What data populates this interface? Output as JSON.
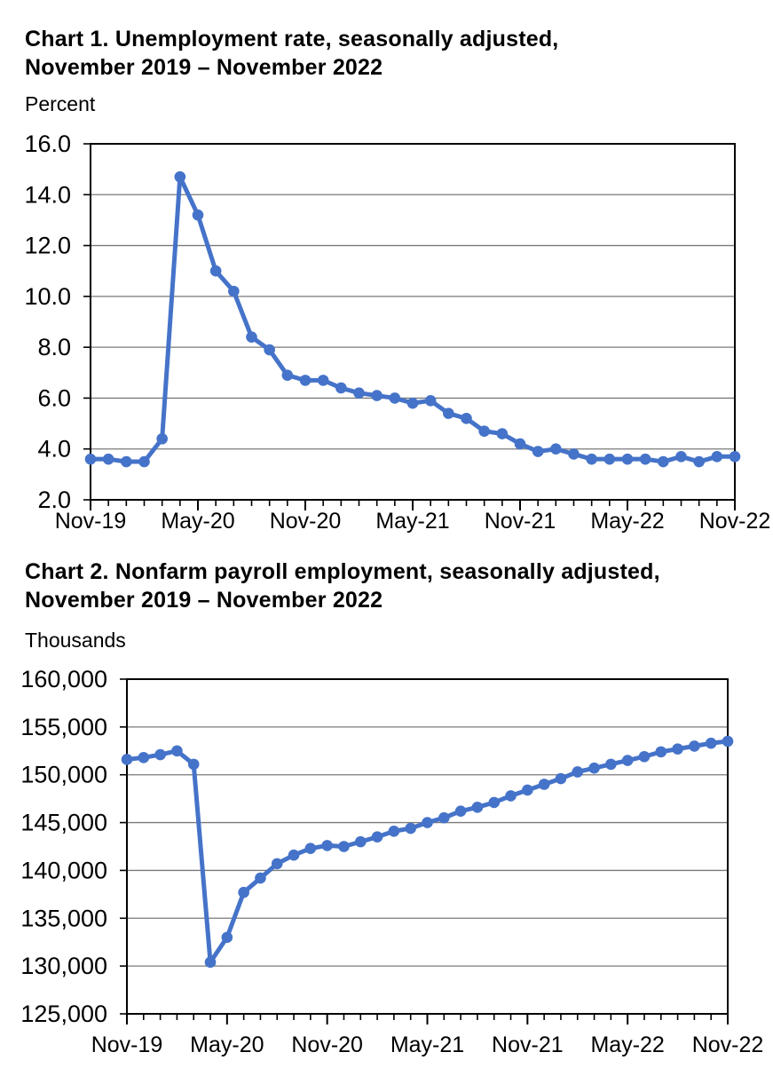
{
  "page_background": "#ffffff",
  "chart_data": [
    {
      "type": "line",
      "title_line1": "Chart 1. Unemployment rate, seasonally adjusted,",
      "title_line2": "November 2019 – November 2022",
      "unit_label": "Percent",
      "series_name": "Unemployment rate (percent)",
      "series_color": "#4573C9",
      "grid": true,
      "legend": "none",
      "x": [
        "Nov-19",
        "Dec-19",
        "Jan-20",
        "Feb-20",
        "Mar-20",
        "Apr-20",
        "May-20",
        "Jun-20",
        "Jul-20",
        "Aug-20",
        "Sep-20",
        "Oct-20",
        "Nov-20",
        "Dec-20",
        "Jan-21",
        "Feb-21",
        "Mar-21",
        "Apr-21",
        "May-21",
        "Jun-21",
        "Jul-21",
        "Aug-21",
        "Sep-21",
        "Oct-21",
        "Nov-21",
        "Dec-21",
        "Jan-22",
        "Feb-22",
        "Mar-22",
        "Apr-22",
        "May-22",
        "Jun-22",
        "Jul-22",
        "Aug-22",
        "Sep-22",
        "Oct-22",
        "Nov-22"
      ],
      "values": [
        3.6,
        3.6,
        3.5,
        3.5,
        4.4,
        14.7,
        13.2,
        11.0,
        10.2,
        8.4,
        7.9,
        6.9,
        6.7,
        6.7,
        6.4,
        6.2,
        6.1,
        6.0,
        5.8,
        5.9,
        5.4,
        5.2,
        4.7,
        4.6,
        4.2,
        3.9,
        4.0,
        3.8,
        3.6,
        3.6,
        3.6,
        3.6,
        3.5,
        3.7,
        3.5,
        3.7,
        3.7
      ],
      "ylim": [
        2.0,
        16.0
      ],
      "ytick_step": 2.0,
      "ytick_decimals": 1,
      "ytick_commas": false,
      "xtick_every": 6,
      "xtick_labels": [
        "Nov-19",
        "May-20",
        "Nov-20",
        "May-21",
        "Nov-21",
        "May-22",
        "Nov-22"
      ]
    },
    {
      "type": "line",
      "title_line1": "Chart 2. Nonfarm payroll employment, seasonally adjusted,",
      "title_line2": "November 2019 – November 2022",
      "unit_label": "Thousands",
      "series_name": "Nonfarm payroll employment (thousands)",
      "series_color": "#4573C9",
      "grid": true,
      "legend": "none",
      "x": [
        "Nov-19",
        "Dec-19",
        "Jan-20",
        "Feb-20",
        "Mar-20",
        "Apr-20",
        "May-20",
        "Jun-20",
        "Jul-20",
        "Aug-20",
        "Sep-20",
        "Oct-20",
        "Nov-20",
        "Dec-20",
        "Jan-21",
        "Feb-21",
        "Mar-21",
        "Apr-21",
        "May-21",
        "Jun-21",
        "Jul-21",
        "Aug-21",
        "Sep-21",
        "Oct-21",
        "Nov-21",
        "Dec-21",
        "Jan-22",
        "Feb-22",
        "Mar-22",
        "Apr-22",
        "May-22",
        "Jun-22",
        "Jul-22",
        "Aug-22",
        "Sep-22",
        "Oct-22",
        "Nov-22"
      ],
      "values": [
        151600,
        151800,
        152100,
        152500,
        151100,
        130400,
        133000,
        137700,
        139200,
        140700,
        141600,
        142300,
        142600,
        142500,
        143000,
        143500,
        144100,
        144400,
        145000,
        145500,
        146200,
        146600,
        147100,
        147800,
        148400,
        149000,
        149600,
        150300,
        150700,
        151100,
        151500,
        151900,
        152400,
        152700,
        153000,
        153300,
        153500
      ],
      "ylim": [
        125000,
        160000
      ],
      "ytick_step": 5000,
      "ytick_decimals": 0,
      "ytick_commas": true,
      "xtick_every": 6,
      "xtick_labels": [
        "Nov-19",
        "May-20",
        "Nov-20",
        "May-21",
        "Nov-21",
        "May-22",
        "Nov-22"
      ]
    }
  ]
}
